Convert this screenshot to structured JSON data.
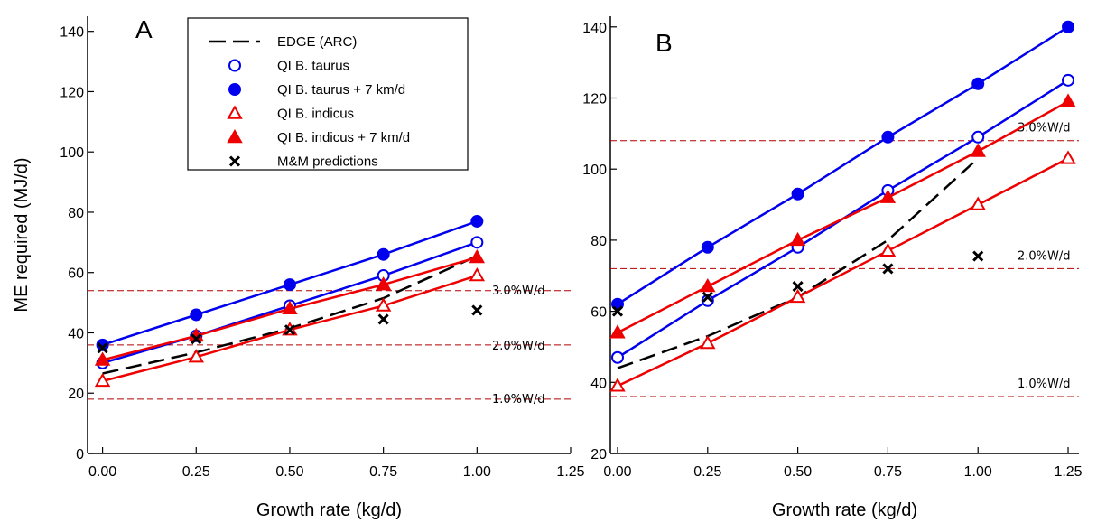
{
  "chart_data": [
    {
      "type": "line",
      "panel_label": "A",
      "xlabel": "Growth rate (kg/d)",
      "ylabel": "ME required (MJ/d)",
      "xlim": [
        -0.04,
        1.25
      ],
      "ylim": [
        0,
        145
      ],
      "x_ticks": [
        "0.00",
        "0.25",
        "0.50",
        "0.75",
        "1.00",
        "1.25"
      ],
      "y_ticks": [
        "0",
        "20",
        "40",
        "60",
        "80",
        "100",
        "120",
        "140"
      ],
      "grid": false,
      "legend_position": "top-center",
      "series": [
        {
          "name": "EDGE (ARC)",
          "style": "dashed",
          "color": "#000000",
          "marker": "none",
          "x": [
            0,
            0.25,
            0.5,
            0.75,
            1.0
          ],
          "y": [
            26.5,
            33.5,
            41.5,
            51.5,
            65.5
          ]
        },
        {
          "name": "QI B. taurus",
          "style": "solid",
          "color": "#0000ee",
          "marker": "circle-open",
          "x": [
            0,
            0.25,
            0.5,
            0.75,
            1.0
          ],
          "y": [
            30,
            39,
            49,
            59,
            70
          ]
        },
        {
          "name": "QI B. taurus + 7 km/d",
          "style": "solid",
          "color": "#0000ee",
          "marker": "circle-filled",
          "x": [
            0,
            0.25,
            0.5,
            0.75,
            1.0
          ],
          "y": [
            36,
            46,
            56,
            66,
            77
          ]
        },
        {
          "name": "QI B. indicus",
          "style": "solid",
          "color": "#ee0000",
          "marker": "triangle-open",
          "x": [
            0,
            0.25,
            0.5,
            0.75,
            1.0
          ],
          "y": [
            24,
            32,
            41,
            49,
            59
          ]
        },
        {
          "name": "QI B. indicus + 7 km/d",
          "style": "solid",
          "color": "#ee0000",
          "marker": "triangle-filled",
          "x": [
            0,
            0.25,
            0.5,
            0.75,
            1.0
          ],
          "y": [
            31,
            39,
            48,
            56,
            65
          ]
        },
        {
          "name": "M&M predictions",
          "style": "none",
          "color": "#000000",
          "marker": "x",
          "x": [
            0,
            0.25,
            0.5,
            0.75,
            1.0
          ],
          "y": [
            35,
            38,
            41,
            44.5,
            47.5
          ]
        }
      ],
      "reference_lines": [
        {
          "y": 54,
          "label": "3.0%W/d"
        },
        {
          "y": 36,
          "label": "2.0%W/d"
        },
        {
          "y": 18,
          "label": "1.0%W/d"
        }
      ]
    },
    {
      "type": "line",
      "panel_label": "B",
      "xlabel": "Growth rate (kg/d)",
      "ylabel": "",
      "xlim": [
        -0.02,
        1.28
      ],
      "ylim": [
        20,
        143
      ],
      "x_ticks": [
        "0.00",
        "0.25",
        "0.50",
        "0.75",
        "1.00",
        "1.25"
      ],
      "y_ticks": [
        "20",
        "40",
        "60",
        "80",
        "100",
        "120",
        "140"
      ],
      "grid": false,
      "series": [
        {
          "name": "EDGE (ARC)",
          "style": "dashed",
          "color": "#000000",
          "marker": "none",
          "x": [
            0,
            0.25,
            0.5,
            0.75,
            1.0
          ],
          "y": [
            44,
            53,
            64,
            80,
            103
          ]
        },
        {
          "name": "QI B. taurus",
          "style": "solid",
          "color": "#0000ee",
          "marker": "circle-open",
          "x": [
            0,
            0.25,
            0.5,
            0.75,
            1.0,
            1.25
          ],
          "y": [
            47,
            63,
            78,
            94,
            109,
            125
          ]
        },
        {
          "name": "QI B. taurus + 7 km/d",
          "style": "solid",
          "color": "#0000ee",
          "marker": "circle-filled",
          "x": [
            0,
            0.25,
            0.5,
            0.75,
            1.0,
            1.25
          ],
          "y": [
            62,
            78,
            93,
            109,
            124,
            140
          ]
        },
        {
          "name": "QI B. indicus",
          "style": "solid",
          "color": "#ee0000",
          "marker": "triangle-open",
          "x": [
            0,
            0.25,
            0.5,
            0.75,
            1.0,
            1.25
          ],
          "y": [
            39,
            51,
            64,
            77,
            90,
            103
          ]
        },
        {
          "name": "QI B. indicus + 7 km/d",
          "style": "solid",
          "color": "#ee0000",
          "marker": "triangle-filled",
          "x": [
            0,
            0.25,
            0.5,
            0.75,
            1.0,
            1.25
          ],
          "y": [
            54,
            67,
            80,
            92,
            105,
            119
          ]
        },
        {
          "name": "M&M predictions",
          "style": "none",
          "color": "#000000",
          "marker": "x",
          "x": [
            0,
            0.25,
            0.5,
            0.75,
            1.0
          ],
          "y": [
            60,
            64,
            67,
            72,
            75.5
          ]
        }
      ],
      "reference_lines": [
        {
          "y": 108,
          "label": "3.0%W/d"
        },
        {
          "y": 72,
          "label": "2.0%W/d"
        },
        {
          "y": 36,
          "label": "1.0%W/d"
        }
      ]
    }
  ]
}
